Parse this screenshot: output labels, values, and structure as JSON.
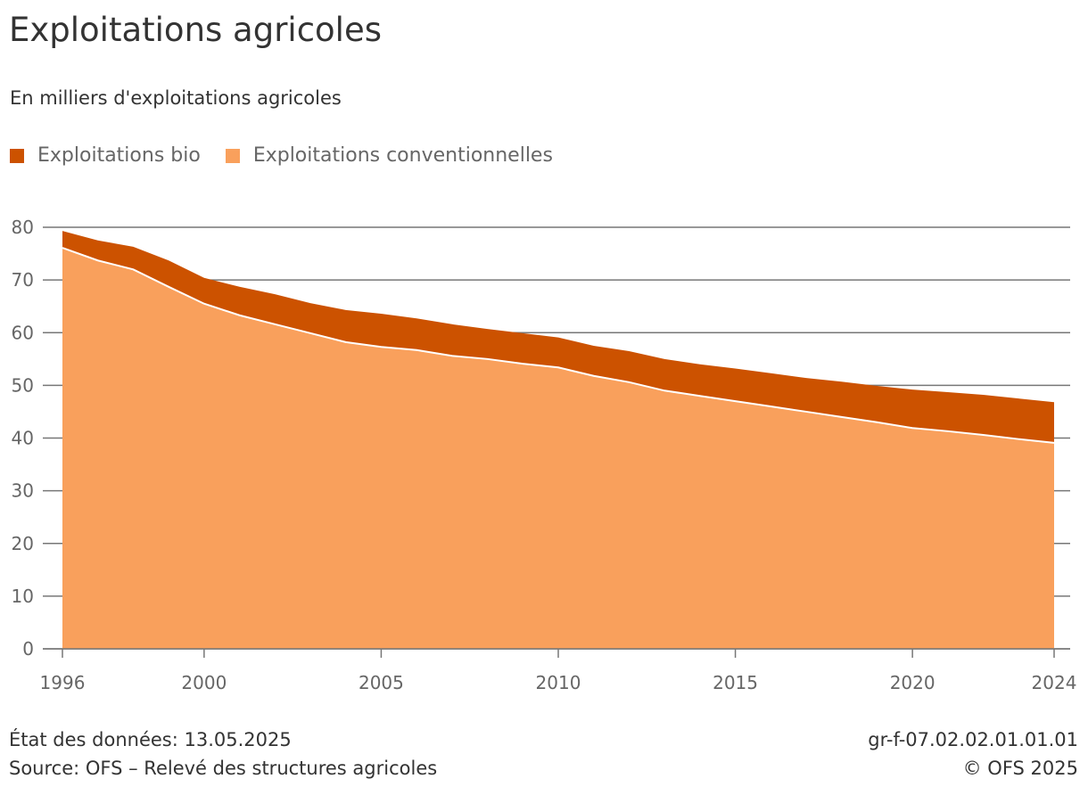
{
  "chart_data": {
    "type": "area",
    "stacked": true,
    "title": "Exploitations agricoles",
    "subtitle": "En milliers d'exploitations agricoles",
    "x": [
      1996,
      1997,
      1998,
      1999,
      2000,
      2001,
      2002,
      2003,
      2004,
      2005,
      2006,
      2007,
      2008,
      2009,
      2010,
      2011,
      2012,
      2013,
      2014,
      2015,
      2016,
      2017,
      2018,
      2019,
      2020,
      2021,
      2022,
      2023,
      2024
    ],
    "series": [
      {
        "name": "Exploitations conventionnelles",
        "color": "#f9a05c",
        "values": [
          76.1,
          73.7,
          72.0,
          68.7,
          65.5,
          63.3,
          61.6,
          59.9,
          58.2,
          57.3,
          56.7,
          55.6,
          55.0,
          54.1,
          53.4,
          51.8,
          50.6,
          49.0,
          48.0,
          47.0,
          46.0,
          45.0,
          44.0,
          43.0,
          41.9,
          41.3,
          40.6,
          39.8,
          39.1
        ]
      },
      {
        "name": "Exploitations bio",
        "color": "#cc5200",
        "values": [
          3.2,
          3.8,
          4.3,
          5.0,
          4.9,
          5.4,
          5.7,
          5.7,
          6.1,
          6.3,
          6.0,
          6.0,
          5.7,
          5.8,
          5.7,
          5.7,
          5.9,
          6.0,
          6.0,
          6.2,
          6.3,
          6.4,
          6.7,
          6.9,
          7.3,
          7.4,
          7.6,
          7.7,
          7.7
        ]
      }
    ],
    "legend_order": [
      "Exploitations bio",
      "Exploitations conventionnelles"
    ],
    "ylim": [
      0,
      80
    ],
    "yticks": [
      0,
      10,
      20,
      30,
      40,
      50,
      60,
      70,
      80
    ],
    "xticks": [
      1996,
      2000,
      2005,
      2010,
      2015,
      2020,
      2024
    ],
    "grid": true,
    "legend_position": "top-left"
  },
  "footer": {
    "date": "État des données: 13.05.2025",
    "source": "Source: OFS – Relevé des structures agricoles",
    "code": "gr-f-07.02.02.01.01.01",
    "copyright": "© OFS 2025"
  }
}
